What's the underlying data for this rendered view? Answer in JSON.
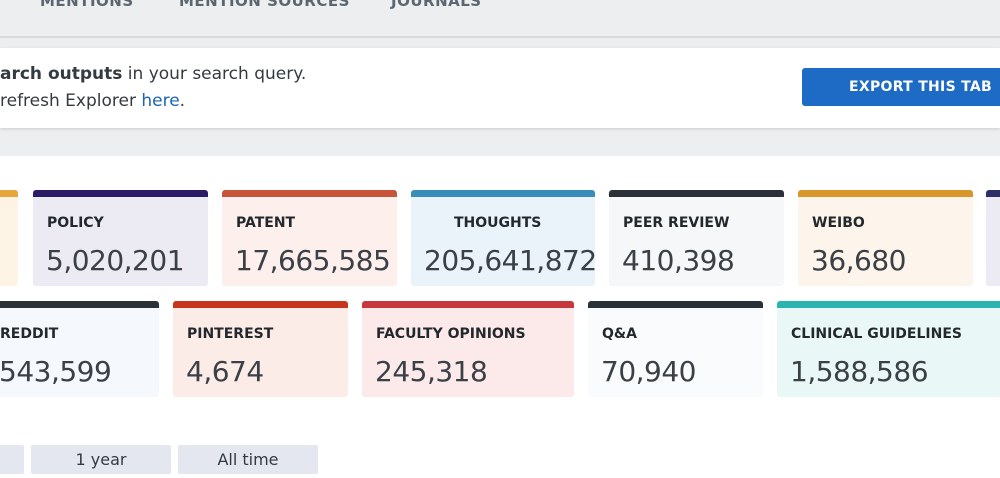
{
  "tabs": [
    "MENTIONS",
    "MENTION SOURCES",
    "JOURNALS"
  ],
  "notice": {
    "line1_bold": "arch outputs",
    "line1_rest": " in your search query.",
    "line2_prefix": " refresh Explorer ",
    "line2_link": "here",
    "line2_suffix": "."
  },
  "export_label": "EXPORT THIS TAB",
  "cards_row1": [
    {
      "label": "POLICY",
      "value": "5,020,201",
      "accent": "#2b1a66",
      "bg": "#ecebf4"
    },
    {
      "label": "PATENT",
      "value": "17,665,585",
      "accent": "#c8543a",
      "bg": "#fcefec"
    },
    {
      "label": "THOUGHTS",
      "value": "205,641,872",
      "accent": "#3a8dba",
      "bg": "#eaf3fa"
    },
    {
      "label": "PEER REVIEW",
      "value": "410,398",
      "accent": "#2a3138",
      "bg": "#f6f7f8"
    },
    {
      "label": "WEIBO",
      "value": "36,680",
      "accent": "#d9962b",
      "bg": "#fdf5eb"
    }
  ],
  "cards_row2": [
    {
      "label": "REDDIT",
      "value": "543,599",
      "accent": "#2a3138",
      "bg": "#f5f8fc"
    },
    {
      "label": "PINTEREST",
      "value": "4,674",
      "accent": "#c7361c",
      "bg": "#fcece8"
    },
    {
      "label": "FACULTY OPINIONS",
      "value": "245,318",
      "accent": "#c8363e",
      "bg": "#fce9ea"
    },
    {
      "label": "Q&A",
      "value": "70,940",
      "accent": "#2a3138",
      "bg": "#fafbfc"
    },
    {
      "label": "CLINICAL GUIDELINES",
      "value": "1,588,586",
      "accent": "#2bb5ae",
      "bg": "#e9f7f6"
    }
  ],
  "time_filters": [
    "1 year",
    "All time"
  ],
  "colors": {
    "partial_left_accent": "#e6a63a",
    "partial_right_accent": "#2b2f66"
  }
}
